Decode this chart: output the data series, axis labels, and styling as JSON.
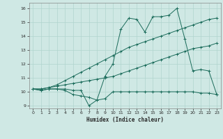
{
  "title": "",
  "xlabel": "Humidex (Indice chaleur)",
  "xlim": [
    -0.5,
    23.5
  ],
  "ylim": [
    8.8,
    16.4
  ],
  "yticks": [
    9,
    10,
    11,
    12,
    13,
    14,
    15,
    16
  ],
  "xticks": [
    0,
    1,
    2,
    3,
    4,
    5,
    6,
    7,
    8,
    9,
    10,
    11,
    12,
    13,
    14,
    15,
    16,
    17,
    18,
    19,
    20,
    21,
    22,
    23
  ],
  "bg_color": "#cfe8e4",
  "grid_color": "#b0d5ce",
  "line_color": "#1a6b5a",
  "series": {
    "line1": [
      10.2,
      10.1,
      10.2,
      10.2,
      10.1,
      9.8,
      9.7,
      9.6,
      9.4,
      9.5,
      10.0,
      10.0,
      10.0,
      10.0,
      10.0,
      10.0,
      10.0,
      10.0,
      10.0,
      10.0,
      10.0,
      9.9,
      9.9,
      9.8
    ],
    "line2": [
      10.2,
      10.1,
      10.2,
      10.2,
      10.2,
      10.1,
      10.1,
      9.0,
      9.4,
      11.1,
      12.0,
      14.5,
      15.3,
      15.2,
      14.3,
      15.4,
      15.4,
      15.5,
      16.0,
      13.8,
      11.5,
      11.6,
      11.5,
      9.8
    ],
    "line3": [
      10.2,
      10.2,
      10.3,
      10.5,
      10.8,
      11.1,
      11.4,
      11.7,
      12.0,
      12.3,
      12.6,
      12.9,
      13.2,
      13.4,
      13.6,
      13.8,
      14.0,
      14.2,
      14.4,
      14.6,
      14.8,
      15.0,
      15.2,
      15.3
    ],
    "line4": [
      10.2,
      10.2,
      10.3,
      10.4,
      10.5,
      10.6,
      10.7,
      10.8,
      10.9,
      11.0,
      11.1,
      11.3,
      11.5,
      11.7,
      11.9,
      12.1,
      12.3,
      12.5,
      12.7,
      12.9,
      13.1,
      13.2,
      13.3,
      13.5
    ]
  }
}
